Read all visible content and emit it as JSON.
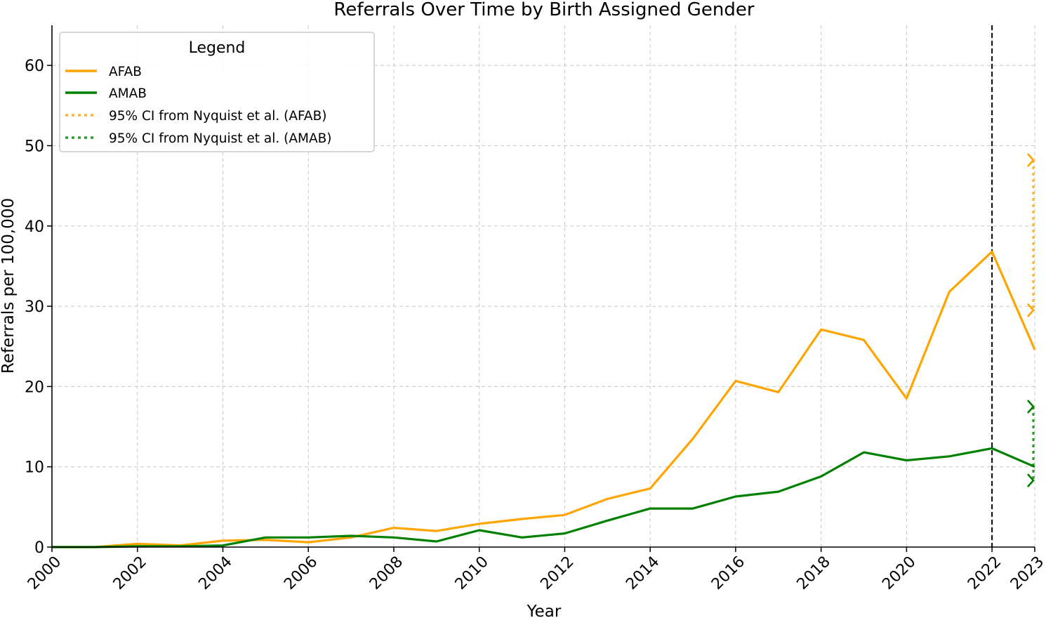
{
  "chart_data": {
    "type": "line",
    "title": "Referrals Over Time by Birth Assigned Gender",
    "xlabel": "Year",
    "ylabel": "Referrals per 100,000",
    "xlim": [
      2000,
      2023
    ],
    "ylim": [
      0,
      65
    ],
    "x_ticks": [
      "2000",
      "2002",
      "2004",
      "2006",
      "2008",
      "2010",
      "2012",
      "2014",
      "2016",
      "2018",
      "2020",
      "2022",
      "2023"
    ],
    "y_ticks": [
      "0",
      "10",
      "20",
      "30",
      "40",
      "50",
      "60"
    ],
    "grid": true,
    "legend": {
      "title": "Legend",
      "position": "top-left",
      "entries": [
        "AFAB",
        "AMAB",
        "95% CI from Nyquist et al. (AFAB)",
        "95% CI from Nyquist et al. (AMAB)"
      ]
    },
    "x": [
      2000,
      2001,
      2002,
      2003,
      2004,
      2005,
      2006,
      2007,
      2008,
      2009,
      2010,
      2011,
      2012,
      2013,
      2014,
      2015,
      2016,
      2017,
      2018,
      2019,
      2020,
      2021,
      2022,
      2023
    ],
    "series": [
      {
        "name": "AFAB",
        "color": "#FFA500",
        "values": [
          0,
          0,
          0.4,
          0.2,
          0.8,
          0.9,
          0.6,
          1.2,
          2.4,
          2.0,
          2.9,
          3.5,
          4.0,
          6.0,
          7.3,
          13.5,
          20.7,
          19.3,
          27.1,
          25.8,
          18.5,
          31.8,
          36.8,
          24.6
        ]
      },
      {
        "name": "AMAB",
        "color": "#008000",
        "values": [
          0,
          0,
          0.1,
          0.1,
          0.2,
          1.2,
          1.2,
          1.4,
          1.2,
          0.7,
          2.1,
          1.2,
          1.7,
          3.3,
          4.8,
          4.8,
          6.3,
          6.9,
          8.8,
          11.8,
          10.8,
          11.3,
          12.3,
          10.0
        ]
      }
    ],
    "confidence_intervals": [
      {
        "name": "95% CI from Nyquist et al. (AFAB)",
        "x": 2023,
        "low": 29.5,
        "high": 48.2,
        "color": "#FFA500"
      },
      {
        "name": "95% CI from Nyquist et al. (AMAB)",
        "x": 2023,
        "low": 8.3,
        "high": 17.5,
        "color": "#008000"
      }
    ],
    "vertical_line": {
      "x": 2022,
      "style": "dashed",
      "color": "#000000"
    }
  }
}
